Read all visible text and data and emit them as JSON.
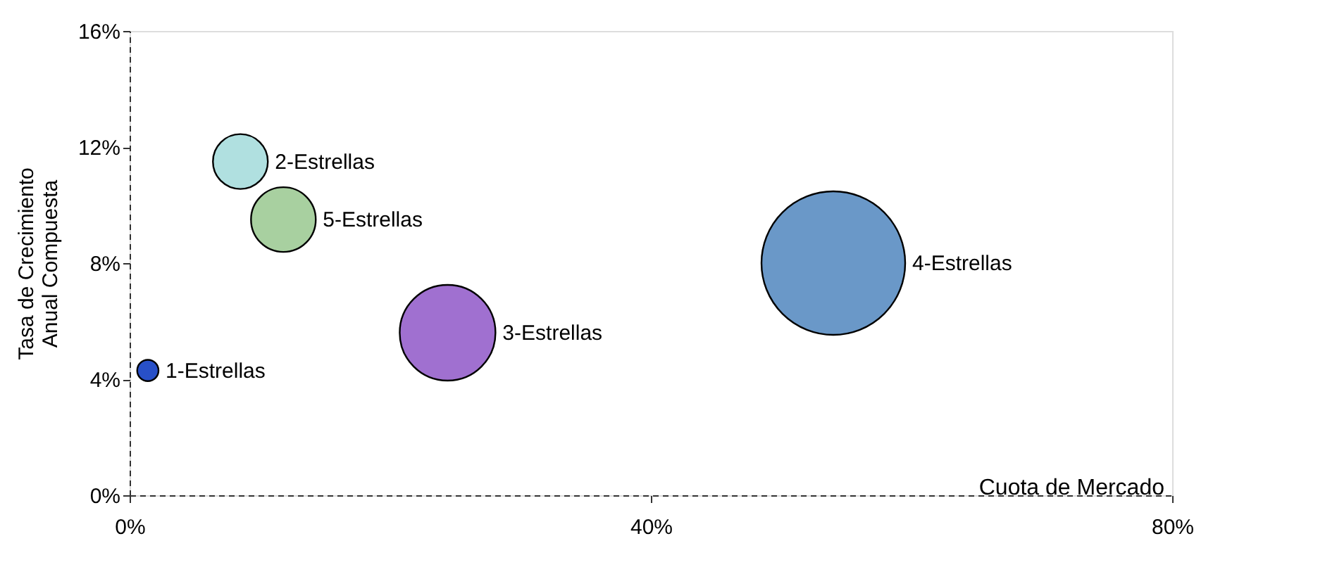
{
  "chart_data": {
    "type": "bubble",
    "xlabel": "Cuota de Mercado",
    "ylabel": "Tasa de Crecimiento Anual Compuesta",
    "series": [
      {
        "name": "1-Estrellas",
        "color": "#2850c8",
        "x": [
          1.4
        ],
        "values": [
          4.3
        ],
        "sizes": [
          0.022
        ]
      },
      {
        "name": "2-Estrellas",
        "color": "#b0e0e0",
        "x": [
          8.5
        ],
        "values": [
          11.5
        ],
        "sizes": [
          0.146
        ]
      },
      {
        "name": "5-Estrellas",
        "color": "#a8d0a0",
        "x": [
          11.8
        ],
        "values": [
          9.5
        ],
        "sizes": [
          0.203
        ]
      },
      {
        "name": "3-Estrellas",
        "color": "#a070d0",
        "x": [
          24.4
        ],
        "values": [
          5.6
        ],
        "sizes": [
          0.444
        ]
      },
      {
        "name": "4-Estrellas",
        "color": "#6a98c8",
        "x": [
          54
        ],
        "values": [
          8.0
        ],
        "sizes": [
          1
        ]
      }
    ],
    "xlim": [
      0,
      80
    ],
    "xticks": [
      {
        "value": 0,
        "label": "0%"
      },
      {
        "value": 40,
        "label": "40%"
      },
      {
        "value": 80,
        "label": "80%"
      }
    ],
    "ylim": [
      0,
      16
    ],
    "yticks": [
      {
        "value": 0,
        "label": "0%"
      },
      {
        "value": 4,
        "label": "4%"
      },
      {
        "value": 8,
        "label": "8%"
      },
      {
        "value": 12,
        "label": "12%"
      },
      {
        "value": 16,
        "label": "16%"
      }
    ],
    "grid": false,
    "legend": false
  }
}
